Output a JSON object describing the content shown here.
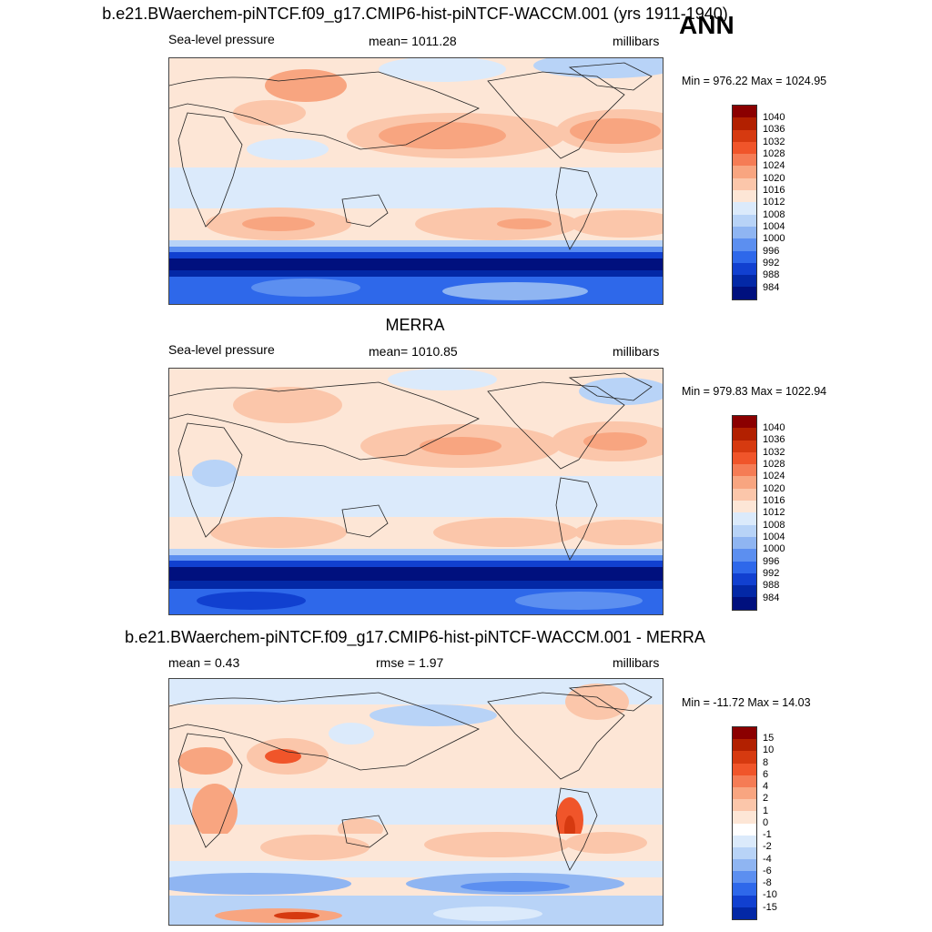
{
  "season": "ANN",
  "panels": [
    {
      "title": "b.e21.BWaerchem-piNTCF.f09_g17.CMIP6-hist-piNTCF-WACCM.001 (yrs 1911-1940)",
      "left_label": "Sea-level pressure",
      "center_label": "mean= 1011.28",
      "right_label": "millibars",
      "minmax": "Min = 976.22 Max = 1024.95"
    },
    {
      "title": "MERRA",
      "left_label": "Sea-level pressure",
      "center_label": "mean= 1010.85",
      "right_label": "millibars",
      "minmax": "Min = 979.83 Max = 1022.94"
    },
    {
      "title": "b.e21.BWaerchem-piNTCF.f09_g17.CMIP6-hist-piNTCF-WACCM.001 - MERRA",
      "left_label": "mean =   0.43",
      "center_label": "rmse =   1.97",
      "right_label": "millibars",
      "minmax": "Min = -11.72 Max =  14.03"
    }
  ],
  "colorbars": {
    "slp": {
      "colors": [
        "#8b0000",
        "#b22000",
        "#d63a10",
        "#f0552a",
        "#f57c55",
        "#f8a580",
        "#fbc6aa",
        "#fde6d6",
        "#dbeafb",
        "#b8d3f7",
        "#8fb5f2",
        "#5c8ff0",
        "#2e68ea",
        "#1140d0",
        "#0328a6",
        "#00107e"
      ],
      "labels": [
        "1040",
        "1036",
        "1032",
        "1028",
        "1024",
        "1020",
        "1016",
        "1012",
        "1008",
        "1004",
        "1000",
        "996",
        "992",
        "988",
        "984"
      ]
    },
    "diff": {
      "colors": [
        "#8b0000",
        "#b22000",
        "#d63a10",
        "#f0552a",
        "#f57c55",
        "#f8a580",
        "#fbc6aa",
        "#fde6d6",
        "#ffffff",
        "#dbeafb",
        "#b8d3f7",
        "#8fb5f2",
        "#5c8ff0",
        "#2e68ea",
        "#1140d0",
        "#0328a6",
        "#00107e"
      ],
      "labels": [
        "15",
        "10",
        "8",
        "6",
        "4",
        "2",
        "1",
        "0",
        "-1",
        "-2",
        "-4",
        "-6",
        "-8",
        "-10",
        "-15"
      ]
    }
  }
}
